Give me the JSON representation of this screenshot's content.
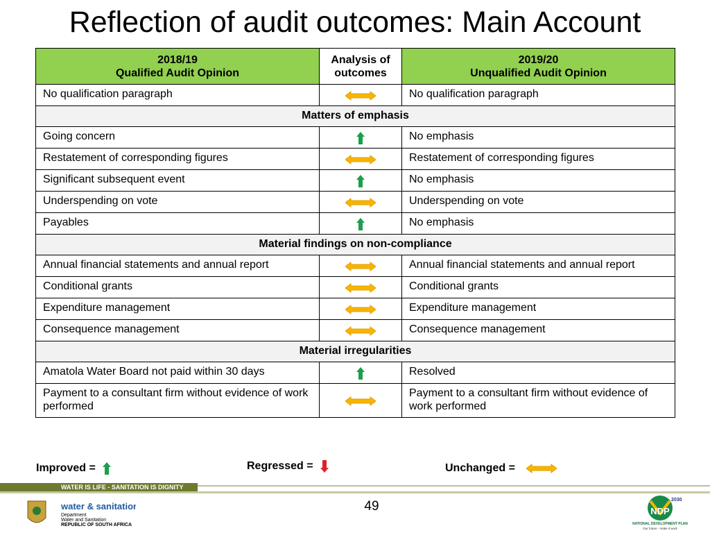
{
  "title": "Reflection of audit outcomes: Main Account",
  "table": {
    "header": {
      "left": {
        "year": "2018/19",
        "label": "Qualified Audit Opinion"
      },
      "middle": "Analysis of outcomes",
      "right": {
        "year": "2019/20",
        "label": "Unqualified Audit Opinion"
      }
    },
    "rows": [
      {
        "before": "No qualification paragraph",
        "after": "No qualification paragraph"
      },
      {
        "section": "Matters of emphasis"
      },
      {
        "before": "Going concern",
        "after": "No emphasis"
      },
      {
        "before": "Restatement of corresponding figures",
        "after": "Restatement of corresponding figures"
      },
      {
        "before": "Significant subsequent event",
        "after": "No emphasis"
      },
      {
        "before": "Underspending on vote",
        "after": "Underspending on vote"
      },
      {
        "before": "Payables",
        "after": "No emphasis"
      },
      {
        "section": "Material findings on non-compliance"
      },
      {
        "before": "Annual financial statements and annual report",
        "after": "Annual financial statements and annual report"
      },
      {
        "before": "Conditional grants",
        "after": "Conditional grants"
      },
      {
        "before": "Expenditure management",
        "after": "Expenditure management"
      },
      {
        "before": "Consequence management",
        "after": "Consequence management"
      },
      {
        "section": "Material irregularities"
      },
      {
        "before": "Amatola Water Board not paid within 30 days",
        "after": "Resolved"
      },
      {
        "before": "Payment to a consultant firm without evidence of work performed",
        "after": "Payment to a consultant firm without evidence of work performed"
      }
    ]
  },
  "legend": {
    "improved": "Improved =",
    "regressed": "Regressed =",
    "unchanged": "Unchanged ="
  },
  "footer": {
    "banner": "WATER IS LIFE - SANITATION IS DIGNITY",
    "brand": "water & sanitation",
    "department": [
      "Department",
      "Water and Sanitation",
      "REPUBLIC OF SOUTH AFRICA"
    ],
    "page": "49",
    "ndp": {
      "year": "2030",
      "name": "NDP",
      "full": "NATIONAL DEVELOPMENT PLAN",
      "slogan": "Our future - make it work"
    }
  }
}
